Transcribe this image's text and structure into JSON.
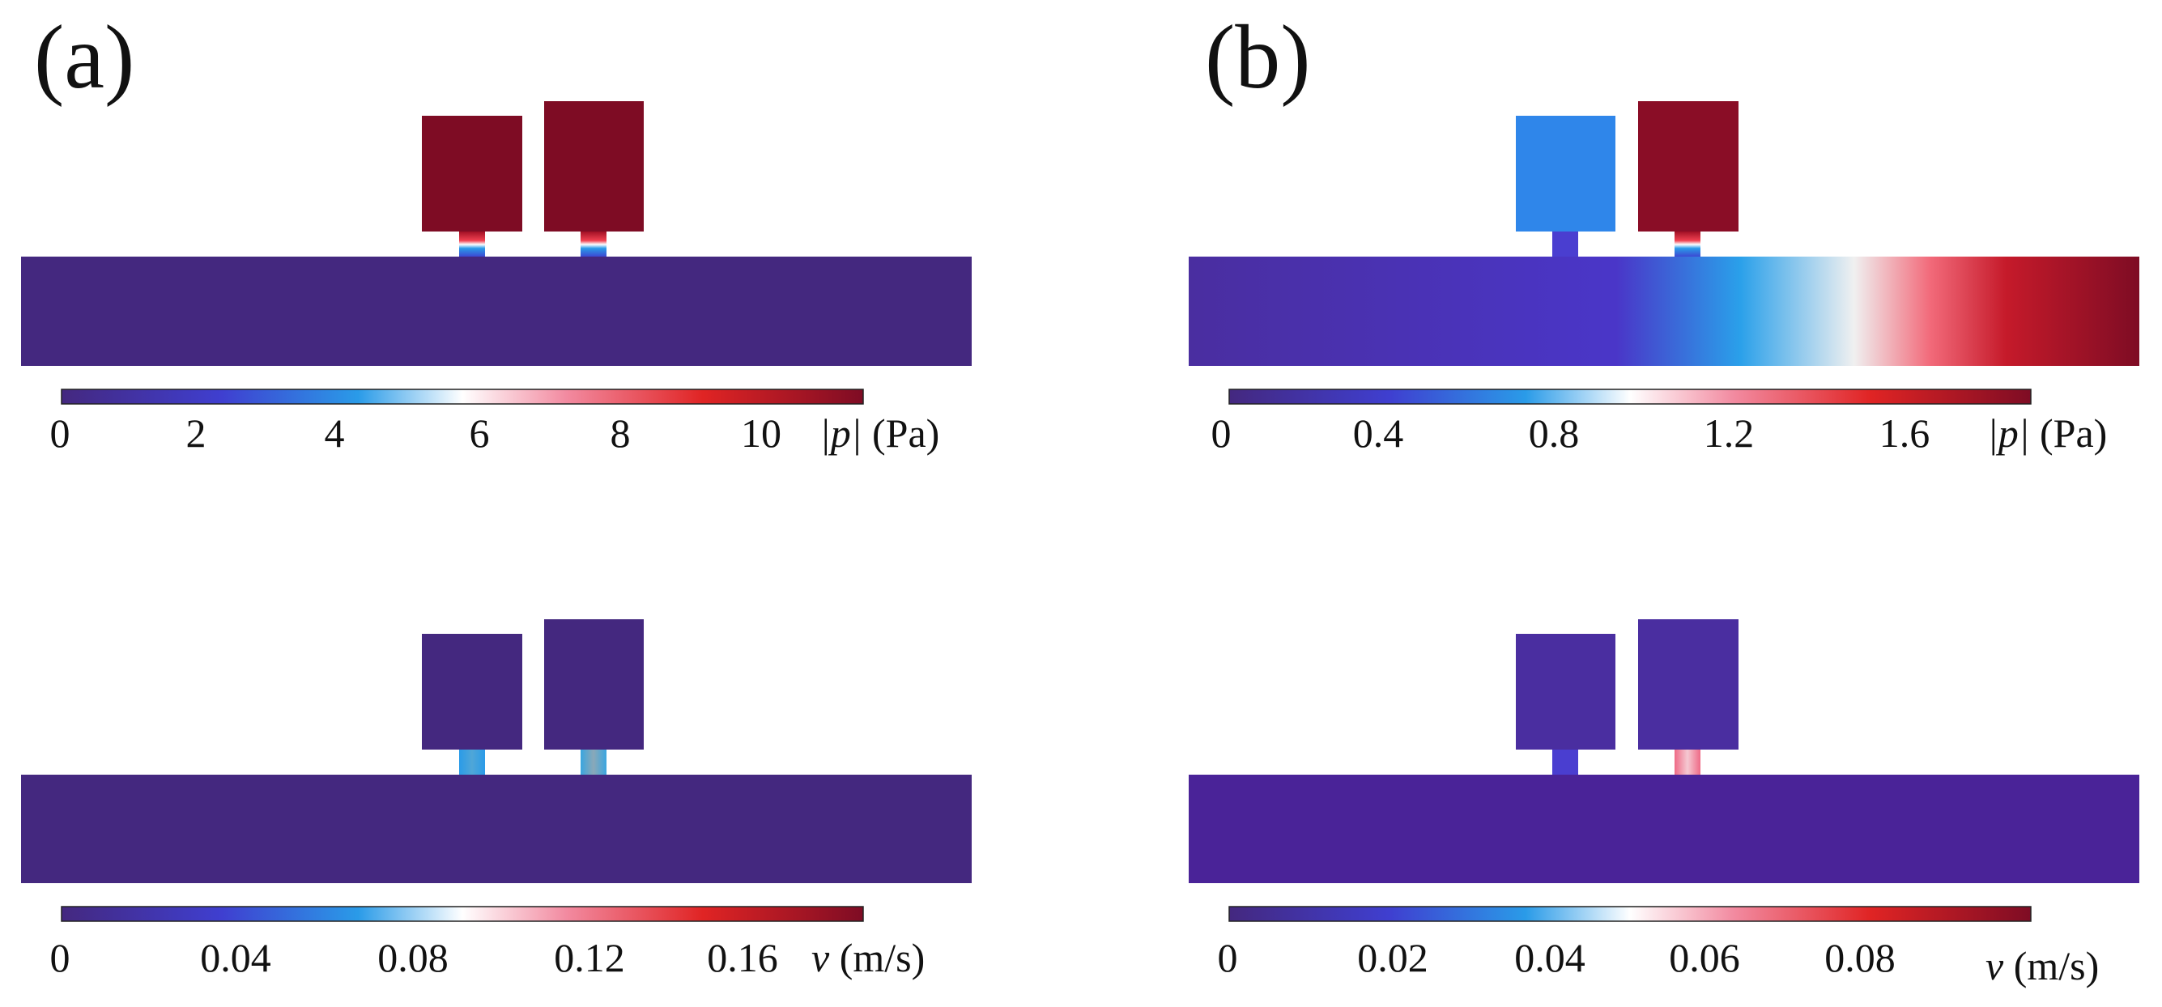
{
  "panels": {
    "a": {
      "label": "(a)",
      "pressure": {
        "colorbar_ticks": [
          "0",
          "2",
          "4",
          "6",
          "8",
          "10"
        ],
        "quantity": "|p|",
        "unit": "(Pa)"
      },
      "velocity": {
        "colorbar_ticks": [
          "0",
          "0.04",
          "0.08",
          "0.12",
          "0.16"
        ],
        "quantity": "v",
        "unit": "(m/s)"
      }
    },
    "b": {
      "label": "(b)",
      "pressure": {
        "colorbar_ticks": [
          "0",
          "0.4",
          "0.8",
          "1.2",
          "1.6"
        ],
        "quantity": "|p|",
        "unit": "(Pa)"
      },
      "velocity": {
        "colorbar_ticks": [
          "0",
          "0.02",
          "0.04",
          "0.06",
          "0.08"
        ],
        "quantity": "v",
        "unit": "(m/s)"
      }
    }
  },
  "colors": {
    "low": "#44287f",
    "mid_blue": "#2f8fe6",
    "white": "#ffffff",
    "high": "#7e0c24"
  }
}
